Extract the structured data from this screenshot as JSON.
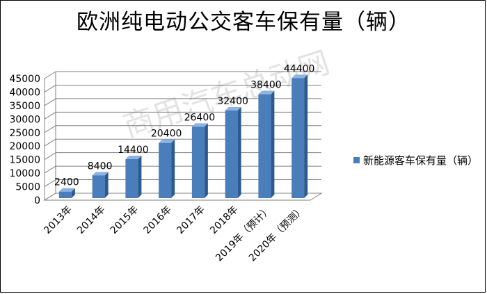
{
  "chart_data": {
    "type": "bar",
    "title": "欧洲纯电动公交客车保有量（辆）",
    "categories": [
      "2013年",
      "2014年",
      "2015年",
      "2016年",
      "2017年",
      "2018年",
      "2019年（预计）",
      "2020年（预测）"
    ],
    "series": [
      {
        "name": "新能源客车保有量（辆）",
        "values": [
          2400,
          8400,
          14400,
          20400,
          26400,
          32400,
          38400,
          44400
        ]
      }
    ],
    "data_labels": [
      "2400",
      "8400",
      "14400",
      "20400",
      "26400",
      "32400",
      "38400",
      "44400"
    ],
    "ylim": [
      0,
      45000
    ],
    "yticks": [
      0,
      5000,
      10000,
      15000,
      20000,
      25000,
      30000,
      35000,
      40000,
      45000
    ],
    "ytick_labels": [
      "0",
      "5000",
      "10000",
      "15000",
      "20000",
      "25000",
      "30000",
      "35000",
      "40000",
      "45000"
    ],
    "xlabel": "",
    "ylabel": "",
    "grid": true,
    "legend_position": "right",
    "style": "3d-column",
    "bar_color": "#4a7ebb"
  },
  "watermark_text": "商用汽车总动网",
  "colors": {
    "bar_front": "#4a7ebb",
    "bar_side": "#2c5a8f",
    "bar_top": "#8db3e2",
    "grid": "#808080"
  }
}
